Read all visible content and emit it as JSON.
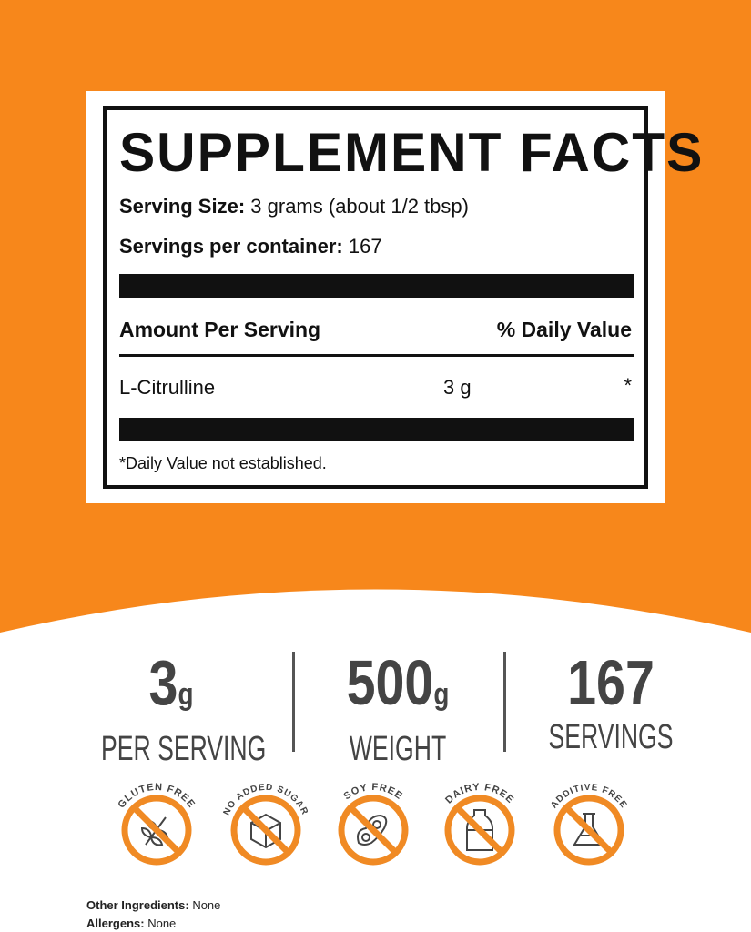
{
  "colors": {
    "background": "#f7871b",
    "badge": "#f08a24",
    "text": "#444444"
  },
  "facts": {
    "title": "SUPPLEMENT FACTS",
    "serving_size_label": "Serving Size:",
    "serving_size_value": "3 grams (about 1/2 tbsp)",
    "servings_label": "Servings per container:",
    "servings_value": "167",
    "amount_header": "Amount Per Serving",
    "dv_header": "% Daily Value",
    "ingredient": "L-Citrulline",
    "amount": "3 g",
    "dv": "*",
    "footnote": "*Daily Value not established."
  },
  "stats": [
    {
      "value": "3",
      "unit": "g",
      "label": "PER SERVING"
    },
    {
      "value": "500",
      "unit": "g",
      "label": "WEIGHT"
    },
    {
      "value": "167",
      "unit": "",
      "label": "SERVINGS"
    }
  ],
  "badges": [
    {
      "label": "GLUTEN FREE",
      "icon": "wheat-icon"
    },
    {
      "label": "NO ADDED SUGAR",
      "icon": "sugar-cube-icon"
    },
    {
      "label": "SOY FREE",
      "icon": "soybean-icon"
    },
    {
      "label": "DAIRY FREE",
      "icon": "milk-bottle-icon"
    },
    {
      "label": "ADDITIVE FREE",
      "icon": "flask-icon"
    }
  ],
  "footer": {
    "other_label": "Other Ingredients:",
    "other_value": "None",
    "allergens_label": "Allergens:",
    "allergens_value": "None"
  }
}
